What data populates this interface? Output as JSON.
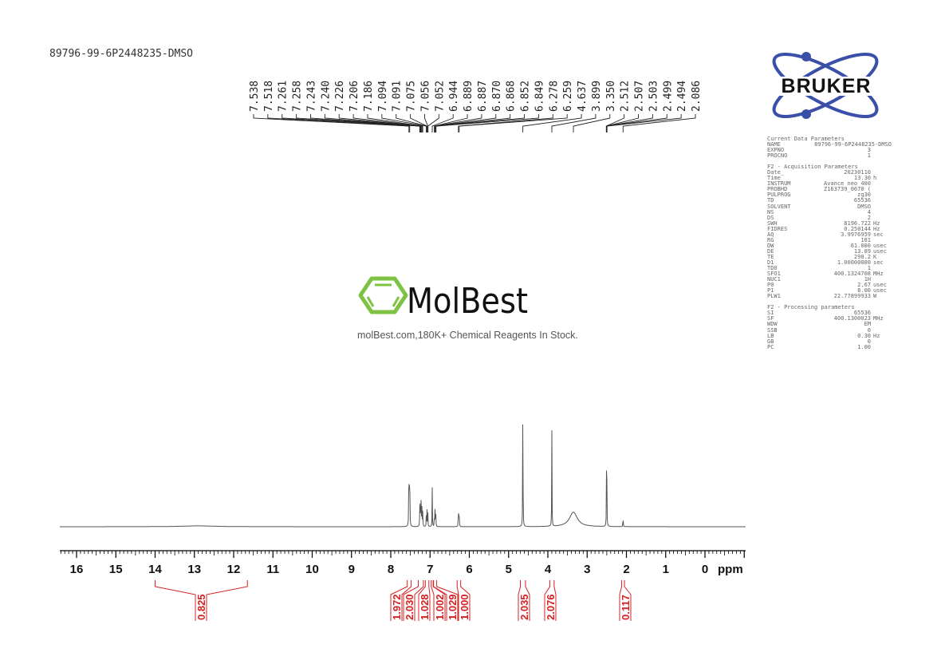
{
  "sample_name": "89796-99-6P2448235-DMSO",
  "watermark": {
    "brand": "MolBest",
    "tagline": "molBest.com,180K+ Chemical Reagents In Stock.",
    "color": "#7dc242"
  },
  "bruker_logo": {
    "text": "BRUKER",
    "orbit_color": "#3a4fa8"
  },
  "parameters": {
    "current": {
      "title": "Current Data Parameters",
      "rows": [
        {
          "name": "NAME",
          "value": "89796-99-6P2448235-DMSO",
          "unit": ""
        },
        {
          "name": "EXPNO",
          "value": "3",
          "unit": ""
        },
        {
          "name": "PROCNO",
          "value": "1",
          "unit": ""
        }
      ]
    },
    "acquisition": {
      "title": "F2 - Acquisition Parameters",
      "rows": [
        {
          "name": "Date_",
          "value": "20230110",
          "unit": ""
        },
        {
          "name": "Time",
          "value": "13.30",
          "unit": "h"
        },
        {
          "name": "INSTRUM",
          "value": "Avance neo 400",
          "unit": ""
        },
        {
          "name": "PROBHD",
          "value": "Z163739_0670 (",
          "unit": ""
        },
        {
          "name": "PULPROG",
          "value": "zg30",
          "unit": ""
        },
        {
          "name": "TD",
          "value": "65536",
          "unit": ""
        },
        {
          "name": "SOLVENT",
          "value": "DMSO",
          "unit": ""
        },
        {
          "name": "NS",
          "value": "4",
          "unit": ""
        },
        {
          "name": "DS",
          "value": "2",
          "unit": ""
        },
        {
          "name": "SWH",
          "value": "8196.722",
          "unit": "Hz"
        },
        {
          "name": "FIDRES",
          "value": "0.250144",
          "unit": "Hz"
        },
        {
          "name": "AQ",
          "value": "3.9976959",
          "unit": "sec"
        },
        {
          "name": "RG",
          "value": "101",
          "unit": ""
        },
        {
          "name": "DW",
          "value": "61.000",
          "unit": "usec"
        },
        {
          "name": "DE",
          "value": "13.89",
          "unit": "usec"
        },
        {
          "name": "TE",
          "value": "298.2",
          "unit": "K"
        },
        {
          "name": "D1",
          "value": "1.00000000",
          "unit": "sec"
        },
        {
          "name": "TD0",
          "value": "1",
          "unit": ""
        },
        {
          "name": "SFO1",
          "value": "400.1324708",
          "unit": "MHz"
        },
        {
          "name": "NUC1",
          "value": "1H",
          "unit": ""
        },
        {
          "name": "P0",
          "value": "2.67",
          "unit": "usec"
        },
        {
          "name": "P1",
          "value": "8.00",
          "unit": "usec"
        },
        {
          "name": "PLW1",
          "value": "22.77899933",
          "unit": "W"
        }
      ]
    },
    "processing": {
      "title": "F2 - Processing parameters",
      "rows": [
        {
          "name": "SI",
          "value": "65536",
          "unit": ""
        },
        {
          "name": "SF",
          "value": "400.1300023",
          "unit": "MHz"
        },
        {
          "name": "WDW",
          "value": "EM",
          "unit": ""
        },
        {
          "name": "SSB",
          "value": "0",
          "unit": ""
        },
        {
          "name": "LB",
          "value": "0.30",
          "unit": "Hz"
        },
        {
          "name": "GB",
          "value": "0",
          "unit": ""
        },
        {
          "name": "PC",
          "value": "1.00",
          "unit": ""
        }
      ]
    }
  },
  "chart_data": {
    "type": "line",
    "xlabel": "ppm",
    "xlim": [
      16.4,
      -1.05
    ],
    "x_ticks": [
      "16",
      "15",
      "14",
      "13",
      "12",
      "11",
      "10",
      "9",
      "8",
      "7",
      "6",
      "5",
      "4",
      "3",
      "2",
      "1",
      "0"
    ],
    "x_reversed": true,
    "grid": false,
    "spectrum_color": "#555555",
    "integral_color": "#d42020",
    "peak_labels": [
      "7.538",
      "7.518",
      "7.261",
      "7.258",
      "7.243",
      "7.240",
      "7.226",
      "7.206",
      "7.186",
      "7.094",
      "7.091",
      "7.075",
      "7.056",
      "7.052",
      "6.944",
      "6.889",
      "6.887",
      "6.870",
      "6.868",
      "6.852",
      "6.849",
      "6.278",
      "6.259",
      "4.637",
      "3.899",
      "3.350",
      "2.512",
      "2.507",
      "2.503",
      "2.499",
      "2.494",
      "2.086"
    ],
    "peaks": [
      {
        "ppm": 7.538,
        "intensity": 0.64
      },
      {
        "ppm": 7.518,
        "intensity": 0.6
      },
      {
        "ppm": 7.261,
        "intensity": 0.18
      },
      {
        "ppm": 7.243,
        "intensity": 0.2
      },
      {
        "ppm": 7.226,
        "intensity": 0.22
      },
      {
        "ppm": 7.206,
        "intensity": 0.16
      },
      {
        "ppm": 7.186,
        "intensity": 0.12
      },
      {
        "ppm": 7.094,
        "intensity": 0.1
      },
      {
        "ppm": 7.075,
        "intensity": 0.12
      },
      {
        "ppm": 7.056,
        "intensity": 0.09
      },
      {
        "ppm": 6.944,
        "intensity": 0.27
      },
      {
        "ppm": 6.889,
        "intensity": 0.1
      },
      {
        "ppm": 6.87,
        "intensity": 0.18
      },
      {
        "ppm": 6.852,
        "intensity": 0.08
      },
      {
        "ppm": 6.278,
        "intensity": 0.16
      },
      {
        "ppm": 6.259,
        "intensity": 0.16
      },
      {
        "ppm": 4.637,
        "intensity": 1.0
      },
      {
        "ppm": 3.899,
        "intensity": 0.67
      },
      {
        "ppm": 2.507,
        "intensity": 0.2
      },
      {
        "ppm": 2.503,
        "intensity": 0.36
      },
      {
        "ppm": 2.499,
        "intensity": 0.2
      },
      {
        "ppm": 2.086,
        "intensity": 0.09
      }
    ],
    "broad_peaks": [
      {
        "ppm": 3.35,
        "intensity": 0.1,
        "width": 0.12
      },
      {
        "ppm": 12.9,
        "intensity": 0.006,
        "width": 0.5
      }
    ],
    "integrals": [
      {
        "value": "0.825",
        "from": 14.0,
        "to": 11.65
      },
      {
        "value": "1.972",
        "from": 7.58,
        "to": 7.48
      },
      {
        "value": "2.030",
        "from": 7.3,
        "to": 7.17
      },
      {
        "value": "1.028",
        "from": 7.12,
        "to": 7.03
      },
      {
        "value": "1.002",
        "from": 6.97,
        "to": 6.92
      },
      {
        "value": "1.029",
        "from": 6.91,
        "to": 6.83
      },
      {
        "value": "1.000",
        "from": 6.31,
        "to": 6.22
      },
      {
        "value": "2.035",
        "from": 4.7,
        "to": 4.57
      },
      {
        "value": "2.076",
        "from": 3.95,
        "to": 3.84
      },
      {
        "value": "0.117",
        "from": 2.12,
        "to": 2.05
      }
    ]
  }
}
